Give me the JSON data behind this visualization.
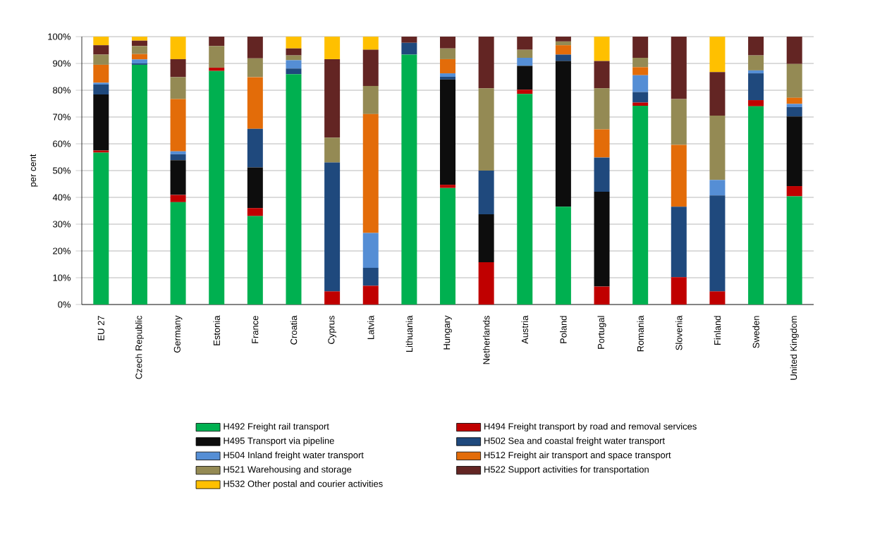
{
  "chart_data": {
    "type": "bar",
    "stacked": true,
    "ylabel": "per cent",
    "grid": "y",
    "legend": "bottom",
    "categories": [
      "EU 27",
      "Czech Republic",
      "Germany",
      "Estonia",
      "France",
      "Croatia",
      "Cyprus",
      "Latvia",
      "Lithuania",
      "Hungary",
      "Netherlands",
      "Austria",
      "Poland",
      "Portugal",
      "Romania",
      "Slovenia",
      "Finland",
      "Sweden",
      "United Kingdom"
    ],
    "ylim": [
      0,
      100
    ],
    "yticks": [
      {
        "value": 0,
        "label": "0%"
      },
      {
        "value": 10,
        "label": "10%"
      },
      {
        "value": 20,
        "label": "20%"
      },
      {
        "value": 30,
        "label": "30%"
      },
      {
        "value": 40,
        "label": "40%"
      },
      {
        "value": 50,
        "label": "50%"
      },
      {
        "value": 60,
        "label": "60%"
      },
      {
        "value": 70,
        "label": "70%"
      },
      {
        "value": 80,
        "label": "80%"
      },
      {
        "value": 90,
        "label": "90%"
      },
      {
        "value": 100,
        "label": "100%"
      }
    ],
    "series": [
      {
        "name": "H492 Freight rail transport",
        "color": "#00b050",
        "values": [
          56.7,
          89.5,
          38.2,
          87.2,
          33,
          86,
          0,
          0,
          93.3,
          43.5,
          0,
          78.6,
          36.5,
          0,
          74.2,
          0,
          0,
          74,
          40.4
        ]
      },
      {
        "name": "H494 Freight transport by road and removal services",
        "color": "#c00000",
        "values": [
          0.8,
          0,
          2.7,
          1.2,
          3,
          0,
          4.9,
          7,
          0,
          1.2,
          15.8,
          1.6,
          0,
          6.7,
          1.2,
          10.2,
          4.9,
          2.3,
          3.8
        ]
      },
      {
        "name": "H495 Transport via pipeline",
        "color": "#0d0d0d",
        "values": [
          20.9,
          0,
          13,
          0,
          15.2,
          0,
          0,
          0,
          0,
          39.3,
          17.9,
          8.9,
          54.4,
          35.4,
          0,
          0,
          0,
          0,
          26
        ]
      },
      {
        "name": "H502 Sea and coastal freight water transport",
        "color": "#1f497d",
        "values": [
          3.7,
          0.5,
          2.2,
          0,
          14.4,
          2.1,
          48.1,
          6.7,
          4.4,
          1,
          16.3,
          0,
          2.4,
          12.8,
          3.9,
          26.3,
          35.8,
          10,
          3.5
        ]
      },
      {
        "name": "H504 Inland freight water transport",
        "color": "#558ed5",
        "values": [
          0.7,
          1.5,
          1.1,
          0,
          0,
          3.1,
          0,
          13,
          0,
          1.3,
          0,
          3,
          0,
          0,
          6.3,
          0,
          5.8,
          1.1,
          1.2
        ]
      },
      {
        "name": "H512 Freight air transport and space transport",
        "color": "#e36c09",
        "values": [
          6.7,
          2,
          19.5,
          0,
          19.3,
          0,
          0,
          44.4,
          0,
          5.3,
          0,
          0,
          3.5,
          10.5,
          3,
          23.1,
          0,
          0,
          2.3
        ]
      },
      {
        "name": "H521 Warehousing and storage",
        "color": "#948a54",
        "values": [
          3.8,
          3,
          8.2,
          8.1,
          7,
          1.8,
          9.3,
          10.5,
          0,
          4,
          30.7,
          3,
          1.4,
          15.3,
          3.5,
          17.1,
          24,
          5.6,
          12.6
        ]
      },
      {
        "name": "H522 Support activities for transportation",
        "color": "#632523",
        "values": [
          3.5,
          2,
          6.7,
          3.5,
          8.1,
          2.6,
          29.3,
          13.5,
          2.3,
          4.4,
          19.3,
          4.9,
          1.8,
          10.2,
          7.9,
          23.3,
          16.3,
          7,
          10.2
        ]
      },
      {
        "name": "H532 Other postal and courier activities",
        "color": "#ffc000",
        "values": [
          3.2,
          1.5,
          8.4,
          0,
          0,
          4.4,
          8.4,
          4.9,
          0,
          0,
          0,
          0,
          0,
          9.1,
          0,
          0,
          13.2,
          0,
          0
        ]
      }
    ]
  }
}
